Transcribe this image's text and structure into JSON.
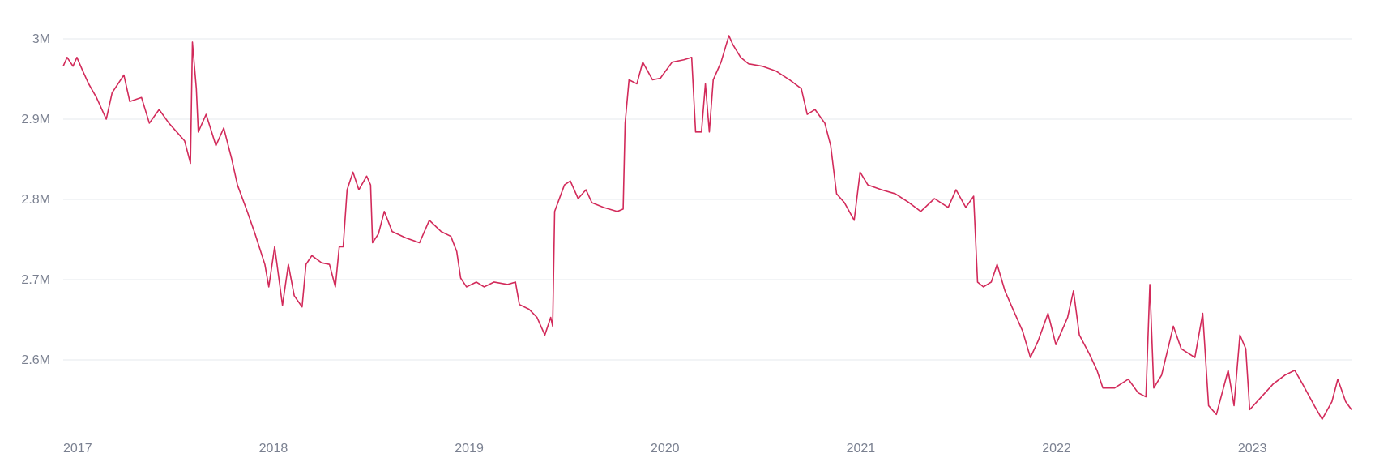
{
  "chart_data": {
    "type": "line",
    "color": "#d22a5a",
    "grid": true,
    "x": [
      2017.0,
      2017.02,
      2017.05,
      2017.07,
      2017.1,
      2017.13,
      2017.17,
      2017.22,
      2017.25,
      2017.31,
      2017.34,
      2017.4,
      2017.44,
      2017.49,
      2017.54,
      2017.58,
      2017.62,
      2017.65,
      2017.66,
      2017.68,
      2017.69,
      2017.73,
      2017.78,
      2017.82,
      2017.86,
      2017.89,
      2017.94,
      2017.98,
      2018.03,
      2018.05,
      2018.08,
      2018.12,
      2018.15,
      2018.18,
      2018.22,
      2018.24,
      2018.27,
      2018.32,
      2018.36,
      2018.39,
      2018.41,
      2018.43,
      2018.45,
      2018.48,
      2018.51,
      2018.55,
      2018.57,
      2018.58,
      2018.61,
      2018.64,
      2018.68,
      2018.75,
      2018.82,
      2018.87,
      2018.93,
      2018.98,
      2019.01,
      2019.03,
      2019.06,
      2019.11,
      2019.15,
      2019.2,
      2019.27,
      2019.31,
      2019.33,
      2019.38,
      2019.42,
      2019.46,
      2019.49,
      2019.5,
      2019.51,
      2019.56,
      2019.59,
      2019.63,
      2019.67,
      2019.7,
      2019.76,
      2019.83,
      2019.86,
      2019.87,
      2019.89,
      2019.93,
      2019.96,
      2020.01,
      2020.05,
      2020.11,
      2020.17,
      2020.21,
      2020.23,
      2020.26,
      2020.28,
      2020.3,
      2020.32,
      2020.36,
      2020.4,
      2020.42,
      2020.46,
      2020.5,
      2020.57,
      2020.64,
      2020.71,
      2020.77,
      2020.8,
      2020.84,
      2020.89,
      2020.92,
      2020.95,
      2020.99,
      2021.04,
      2021.07,
      2021.11,
      2021.18,
      2021.25,
      2021.32,
      2021.38,
      2021.45,
      2021.52,
      2021.56,
      2021.61,
      2021.65,
      2021.67,
      2021.7,
      2021.74,
      2021.77,
      2021.81,
      2021.86,
      2021.9,
      2021.94,
      2021.98,
      2022.03,
      2022.07,
      2022.13,
      2022.16,
      2022.19,
      2022.24,
      2022.28,
      2022.31,
      2022.37,
      2022.44,
      2022.49,
      2022.53,
      2022.55,
      2022.57,
      2022.61,
      2022.67,
      2022.71,
      2022.78,
      2022.82,
      2022.85,
      2022.89,
      2022.95,
      2022.98,
      2023.01,
      2023.04,
      2023.06,
      2023.12,
      2023.18,
      2023.24,
      2023.29,
      2023.33,
      2023.39,
      2023.43,
      2023.48,
      2023.51,
      2023.55,
      2023.58
    ],
    "values": [
      2966000,
      2977000,
      2966000,
      2977000,
      2960000,
      2944000,
      2927000,
      2900000,
      2933000,
      2955000,
      2922000,
      2927000,
      2895000,
      2912000,
      2895000,
      2884000,
      2873000,
      2845000,
      2996000,
      2938000,
      2884000,
      2906000,
      2867000,
      2889000,
      2851000,
      2818000,
      2785000,
      2757000,
      2719000,
      2691000,
      2741000,
      2668000,
      2719000,
      2680000,
      2666000,
      2719000,
      2730000,
      2721000,
      2719000,
      2691000,
      2741000,
      2741000,
      2812000,
      2834000,
      2812000,
      2829000,
      2818000,
      2746000,
      2757000,
      2785000,
      2760000,
      2752000,
      2746000,
      2774000,
      2760000,
      2754000,
      2735000,
      2702000,
      2691000,
      2697000,
      2691000,
      2697000,
      2694000,
      2697000,
      2669000,
      2663000,
      2653000,
      2631000,
      2653000,
      2642000,
      2785000,
      2818000,
      2823000,
      2801000,
      2812000,
      2796000,
      2790000,
      2785000,
      2788000,
      2895000,
      2949000,
      2944000,
      2971000,
      2949000,
      2951000,
      2971000,
      2974000,
      2977000,
      2884000,
      2884000,
      2944000,
      2884000,
      2949000,
      2971000,
      3004000,
      2993000,
      2977000,
      2969000,
      2966000,
      2960000,
      2949000,
      2938000,
      2906000,
      2912000,
      2895000,
      2867000,
      2807000,
      2796000,
      2774000,
      2834000,
      2818000,
      2812000,
      2807000,
      2796000,
      2785000,
      2801000,
      2790000,
      2812000,
      2790000,
      2804000,
      2697000,
      2691000,
      2697000,
      2719000,
      2686000,
      2658000,
      2636000,
      2603000,
      2624000,
      2658000,
      2619000,
      2653000,
      2686000,
      2631000,
      2608000,
      2587000,
      2565000,
      2565000,
      2576000,
      2559000,
      2554000,
      2694000,
      2565000,
      2581000,
      2642000,
      2614000,
      2603000,
      2658000,
      2543000,
      2532000,
      2587000,
      2543000,
      2631000,
      2614000,
      2538000,
      2554000,
      2570000,
      2581000,
      2587000,
      2570000,
      2543000,
      2526000,
      2548000,
      2576000,
      2548000,
      2538000
    ],
    "xlim": [
      2017.0,
      2023.58
    ],
    "xticks": [
      2017,
      2018,
      2019,
      2020,
      2021,
      2022,
      2023
    ],
    "ylim": [
      2520000,
      3010000
    ],
    "yticks": [
      {
        "value": 2600000,
        "label": "2.6M"
      },
      {
        "value": 2700000,
        "label": "2.7M"
      },
      {
        "value": 2800000,
        "label": "2.8M"
      },
      {
        "value": 2900000,
        "label": "2.9M"
      },
      {
        "value": 3000000,
        "label": "3M"
      }
    ]
  }
}
